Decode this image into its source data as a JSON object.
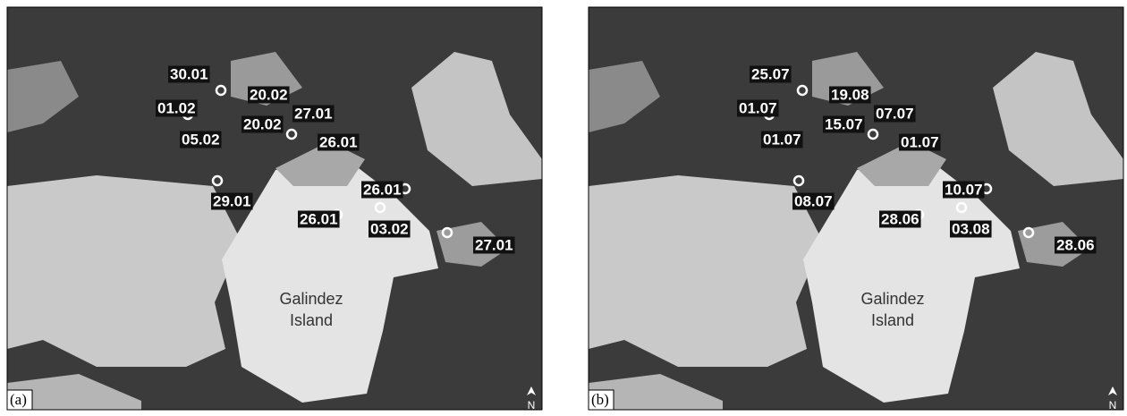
{
  "panels": [
    {
      "label": "(a)",
      "place_name": [
        "Galindez",
        "Island"
      ],
      "north": "N",
      "dates": [
        "30.01",
        "01.02",
        "05.02",
        "20.02",
        "20.02",
        "27.01",
        "26.01",
        "29.01",
        "26.01",
        "26.01",
        "03.02",
        "27.01"
      ]
    },
    {
      "label": "(b)",
      "place_name": [
        "Galindez",
        "Island"
      ],
      "north": "N",
      "dates": [
        "25.07",
        "01.07",
        "01.07",
        "19.08",
        "15.07",
        "07.07",
        "01.07",
        "08.07",
        "10.07",
        "28.06",
        "03.08",
        "28.06"
      ]
    }
  ]
}
